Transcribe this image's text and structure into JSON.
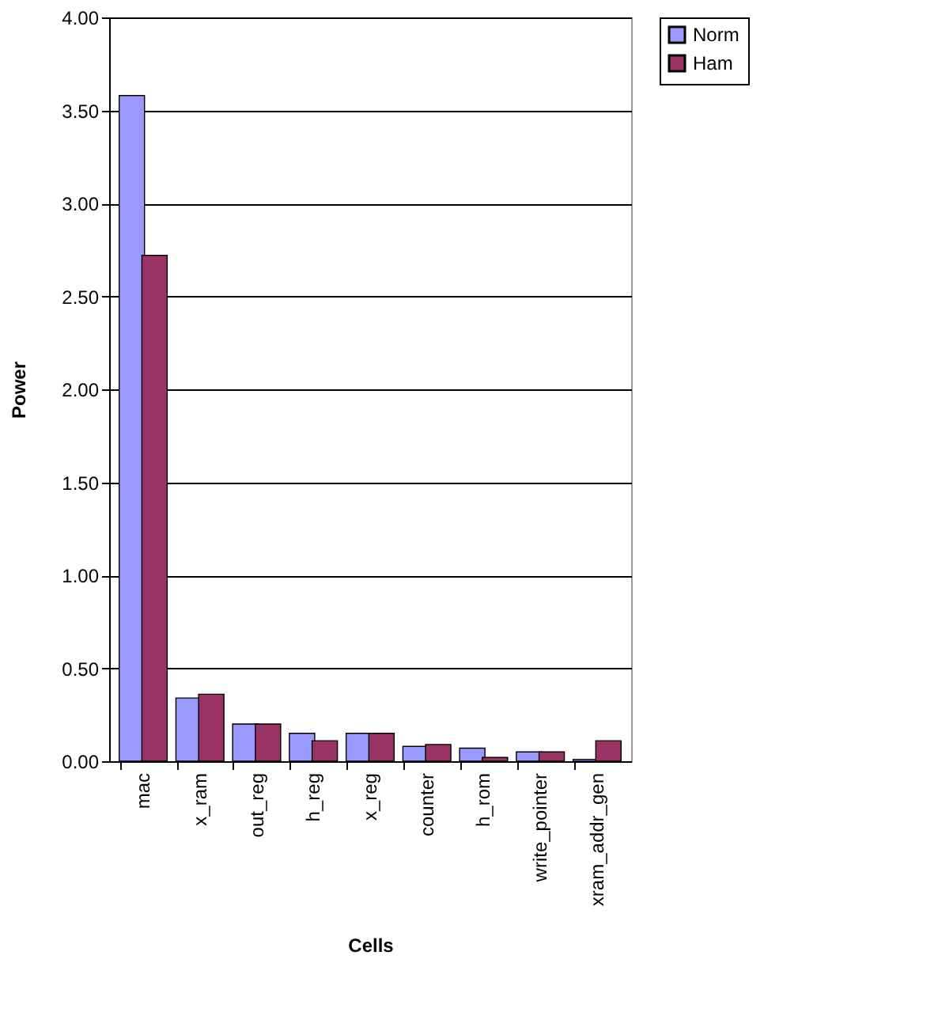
{
  "chart_data": {
    "type": "bar",
    "xlabel": "Cells",
    "ylabel": "Power",
    "categories": [
      "mac",
      "x_ram",
      "out_reg",
      "h_reg",
      "x_reg",
      "counter",
      "h_rom",
      "write_pointer",
      "xram_addr_gen"
    ],
    "series": [
      {
        "name": "Norm",
        "color": "#9999ff",
        "values": [
          3.58,
          0.34,
          0.2,
          0.15,
          0.15,
          0.08,
          0.07,
          0.05,
          0.01
        ]
      },
      {
        "name": "Ham",
        "color": "#993366",
        "values": [
          2.72,
          0.36,
          0.2,
          0.11,
          0.15,
          0.09,
          0.02,
          0.05,
          0.11
        ]
      }
    ],
    "ylim": [
      0,
      4
    ],
    "yticks": [
      {
        "value": 0,
        "label": "0.00"
      },
      {
        "value": 0.5,
        "label": "0.50"
      },
      {
        "value": 1,
        "label": "1.00"
      },
      {
        "value": 1.5,
        "label": "1.50"
      },
      {
        "value": 2,
        "label": "2.00"
      },
      {
        "value": 2.5,
        "label": "2.50"
      },
      {
        "value": 3,
        "label": "3.00"
      },
      {
        "value": 3.5,
        "label": "3.50"
      },
      {
        "value": 4,
        "label": "4.00"
      }
    ],
    "grid": "y",
    "legend": "right"
  }
}
